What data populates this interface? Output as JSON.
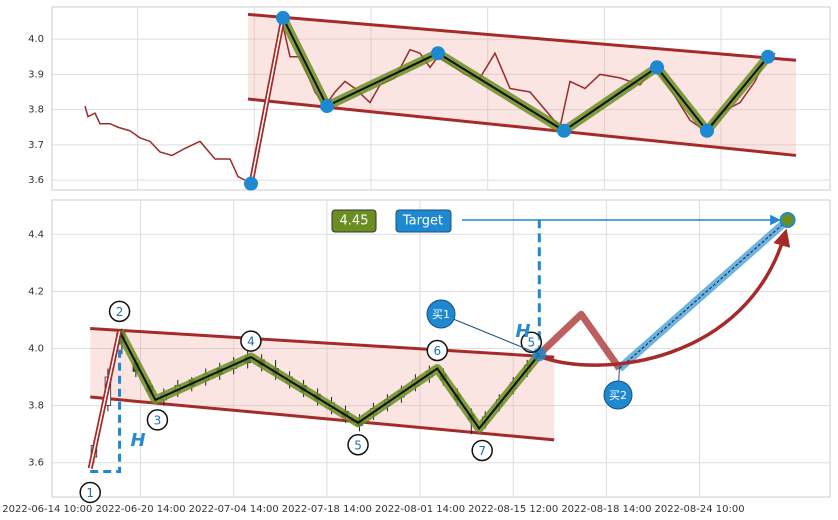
{
  "chart_data": [
    {
      "type": "line",
      "xlim": [
        0,
        778
      ],
      "ylim": [
        3.572,
        4.091
      ],
      "yticks": [
        3.6,
        3.7,
        3.8,
        3.9,
        {
          "value": 4,
          "label": "4.0"
        }
      ],
      "grid": true,
      "price": {
        "color": "#9b2a2a",
        "x": [
          33,
          36,
          43,
          48,
          58,
          66,
          78,
          88,
          98,
          108,
          120,
          133,
          148,
          163,
          178,
          186,
          193,
          212,
          230,
          238,
          248,
          263,
          273,
          283,
          293,
          303,
          318,
          328,
          343,
          358,
          368,
          378,
          386,
          398,
          413,
          428,
          443,
          458,
          478,
          493,
          508,
          518,
          533,
          548,
          568,
          588,
          603,
          618,
          638,
          653,
          668,
          688,
          703,
          713,
          723
        ],
        "values": [
          3.81,
          3.78,
          3.79,
          3.76,
          3.76,
          3.75,
          3.74,
          3.72,
          3.71,
          3.68,
          3.67,
          3.69,
          3.71,
          3.66,
          3.66,
          3.61,
          3.6,
          null,
          4.05,
          3.95,
          3.95,
          3.85,
          3.81,
          3.85,
          3.88,
          3.86,
          3.82,
          3.87,
          3.89,
          3.97,
          3.96,
          3.92,
          3.95,
          3.93,
          3.9,
          3.89,
          3.96,
          3.86,
          3.85,
          3.8,
          3.75,
          3.88,
          3.86,
          3.9,
          3.89,
          3.87,
          3.92,
          3.86,
          3.77,
          3.74,
          3.79,
          3.82,
          3.88,
          3.94,
          3.96
        ]
      },
      "zigzag": {
        "x": [
          199,
          231,
          275,
          386,
          512,
          605,
          655,
          716
        ],
        "values": [
          3.59,
          4.06,
          3.81,
          3.96,
          3.74,
          3.92,
          3.74,
          3.95
        ]
      },
      "channel": {
        "x": [
          196,
          744
        ],
        "upper": [
          4.07,
          3.94
        ],
        "lower": [
          3.83,
          3.67
        ]
      }
    },
    {
      "type": "candlestick",
      "xlim": [
        1,
        168
      ],
      "ylim": [
        3.48,
        4.52
      ],
      "yticks": [
        3.6,
        3.8,
        {
          "value": 4,
          "label": "4.0"
        },
        4.2,
        4.4
      ],
      "xticks": [
        {
          "value": 0,
          "label": "2022-06-14 10:00"
        },
        {
          "value": 20,
          "label": "2022-06-20 14:00"
        },
        {
          "value": 40,
          "label": "2022-07-04 14:00"
        },
        {
          "value": 60,
          "label": "2022-07-18 14:00"
        },
        {
          "value": 80,
          "label": "2022-08-01 14:00"
        },
        {
          "value": 100,
          "label": "2022-08-15 12:00"
        },
        {
          "value": 120,
          "label": "2022-08-18 14:00"
        },
        {
          "value": 140,
          "label": "2022-08-24 10:00"
        }
      ],
      "grid": true,
      "candles": {
        "x": [
          10,
          13,
          16,
          19,
          22,
          25,
          28,
          31,
          34,
          37,
          40,
          43,
          46,
          49,
          52,
          55,
          58,
          61,
          64,
          67,
          70,
          73,
          76,
          79,
          82,
          85,
          88,
          91,
          94,
          97,
          100,
          103
        ],
        "open": [
          3.62,
          3.8,
          4.06,
          3.95,
          3.87,
          3.82,
          3.85,
          3.89,
          3.89,
          3.93,
          3.93,
          3.97,
          3.96,
          3.93,
          3.88,
          3.87,
          3.84,
          3.79,
          3.78,
          3.75,
          3.77,
          3.8,
          3.83,
          3.87,
          3.9,
          3.91,
          3.84,
          3.77,
          3.74,
          3.8,
          3.86,
          3.92
        ],
        "high": [
          3.68,
          3.93,
          4.07,
          3.97,
          3.89,
          3.86,
          3.89,
          3.9,
          3.93,
          3.95,
          3.97,
          4.01,
          3.98,
          3.96,
          3.92,
          3.89,
          3.86,
          3.83,
          3.8,
          3.77,
          3.81,
          3.84,
          3.87,
          3.91,
          3.94,
          3.93,
          3.86,
          3.79,
          3.78,
          3.84,
          3.9,
          3.96
        ],
        "low": [
          3.6,
          3.78,
          3.98,
          3.9,
          3.83,
          3.8,
          3.83,
          3.85,
          3.87,
          3.89,
          3.91,
          3.93,
          3.92,
          3.89,
          3.86,
          3.83,
          3.8,
          3.77,
          3.74,
          3.71,
          3.75,
          3.78,
          3.81,
          3.85,
          3.88,
          3.87,
          3.8,
          3.7,
          3.72,
          3.78,
          3.84,
          3.9
        ],
        "close": [
          3.66,
          3.9,
          4.02,
          3.92,
          3.85,
          3.84,
          3.87,
          3.87,
          3.91,
          3.91,
          3.95,
          3.95,
          3.94,
          3.91,
          3.9,
          3.85,
          3.82,
          3.81,
          3.76,
          3.73,
          3.79,
          3.82,
          3.85,
          3.89,
          3.92,
          3.89,
          3.82,
          3.75,
          3.76,
          3.82,
          3.88,
          3.94
        ]
      },
      "zigzag": {
        "x": [
          9.2,
          15.5,
          23.2,
          43.7,
          66.7,
          83.7,
          92.7,
          105.6
        ],
        "values": [
          3.58,
          4.06,
          3.82,
          3.97,
          3.74,
          3.93,
          3.72,
          3.98
        ],
        "labels": [
          "1",
          "2",
          "3",
          "4",
          "5",
          "6",
          "7",
          "5"
        ]
      },
      "channel": {
        "x": [
          9.2,
          108.8
        ],
        "upper": [
          4.07,
          3.97
        ],
        "lower": [
          3.83,
          3.68
        ]
      },
      "projection": {
        "x": [
          114.6,
          122.8
        ],
        "values": [
          4.12,
          3.93
        ]
      },
      "target": {
        "x": 158.9,
        "value": 4.45,
        "label": "Target"
      },
      "annotations": {
        "h": [
          "H",
          "H"
        ],
        "buy": [
          "买1",
          "买2"
        ]
      }
    }
  ]
}
